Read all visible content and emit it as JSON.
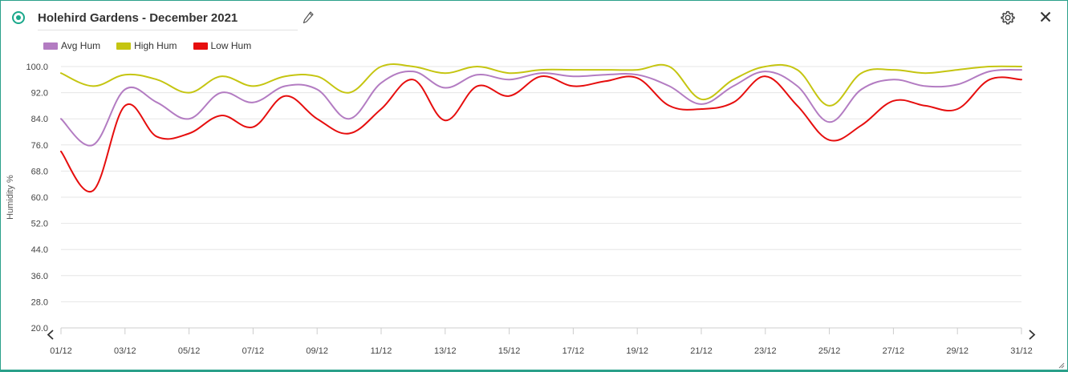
{
  "widget": {
    "title": "Holehird Gardens - December 2021",
    "status_color": "#1aa88b",
    "icons": {
      "status": "status-dot-icon",
      "edit": "pencil-icon",
      "settings": "gear-icon",
      "close": "close-icon",
      "prev": "chevron-left-icon",
      "next": "chevron-right-icon"
    }
  },
  "legend": [
    {
      "name": "Avg Hum",
      "color": "#b37cc2"
    },
    {
      "name": "High Hum",
      "color": "#c5c511"
    },
    {
      "name": "Low Hum",
      "color": "#e60e0e"
    }
  ],
  "chart_data": {
    "type": "line",
    "title": "",
    "xlabel": "",
    "ylabel": "Humidity %",
    "ylim": [
      20,
      100
    ],
    "y_ticks": [
      "100.0",
      "92.0",
      "84.0",
      "76.0",
      "68.0",
      "60.0",
      "52.0",
      "44.0",
      "36.0",
      "28.0",
      "20.0"
    ],
    "x_tick_labels": [
      "01/12",
      "03/12",
      "05/12",
      "07/12",
      "09/12",
      "11/12",
      "13/12",
      "15/12",
      "17/12",
      "19/12",
      "21/12",
      "23/12",
      "25/12",
      "27/12",
      "29/12",
      "31/12"
    ],
    "x": [
      "01/12",
      "02/12",
      "03/12",
      "04/12",
      "05/12",
      "06/12",
      "07/12",
      "08/12",
      "09/12",
      "10/12",
      "11/12",
      "12/12",
      "13/12",
      "14/12",
      "15/12",
      "16/12",
      "17/12",
      "18/12",
      "19/12",
      "20/12",
      "21/12",
      "22/12",
      "23/12",
      "24/12",
      "25/12",
      "26/12",
      "27/12",
      "28/12",
      "29/12",
      "30/12",
      "31/12"
    ],
    "grid": true,
    "legend_position": "top-left",
    "series": [
      {
        "name": "Avg Hum",
        "color": "#b37cc2",
        "values": [
          84,
          76,
          93,
          89,
          84,
          92,
          89,
          94,
          93,
          84,
          95,
          98.5,
          93.5,
          97.5,
          96,
          98,
          97,
          97.5,
          97.5,
          94,
          88.5,
          94,
          98.5,
          94,
          83,
          93,
          96,
          94,
          94.5,
          98.5,
          99
        ]
      },
      {
        "name": "High Hum",
        "color": "#c5c511",
        "values": [
          98,
          94,
          97.5,
          96,
          92,
          97,
          94,
          97,
          97,
          92,
          100,
          100,
          98,
          100,
          98,
          99,
          99,
          99,
          99,
          100,
          90,
          96,
          100,
          99,
          88,
          98,
          99,
          98,
          99,
          100,
          100
        ]
      },
      {
        "name": "Low Hum",
        "color": "#e60e0e",
        "values": [
          74,
          62,
          88,
          78.5,
          79.5,
          85,
          81.5,
          91,
          84,
          79.5,
          87,
          96,
          83.5,
          94,
          91,
          97,
          94,
          95.5,
          96.5,
          88,
          87,
          89,
          97,
          88,
          77.5,
          82,
          89.5,
          88,
          87,
          96,
          96
        ]
      }
    ]
  }
}
